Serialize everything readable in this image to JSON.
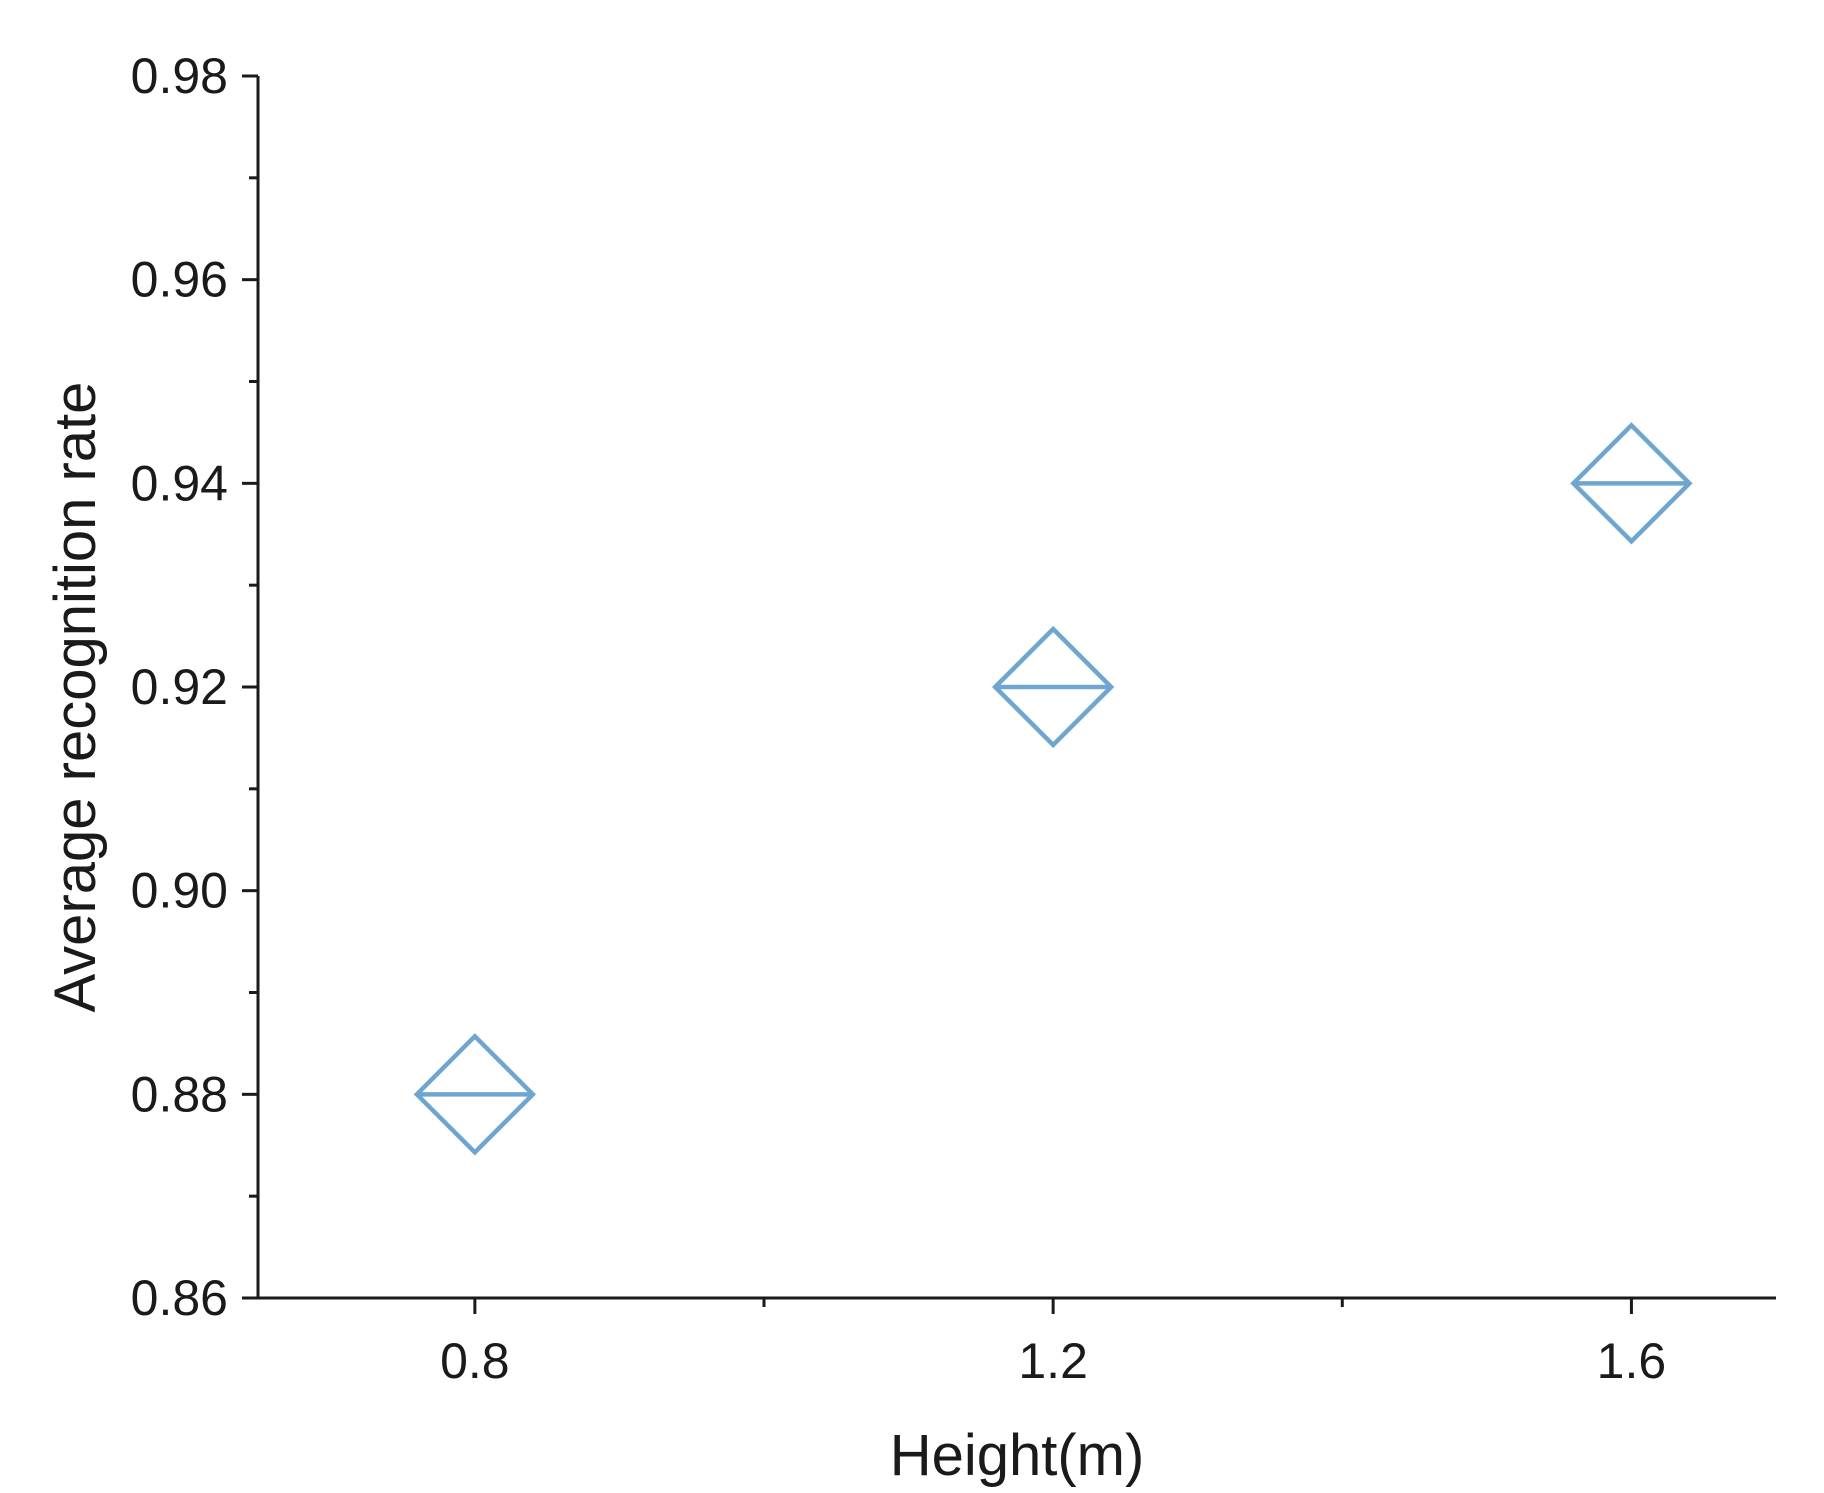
{
  "chart_data": {
    "type": "scatter",
    "xlabel": "Height(m)",
    "ylabel": "Average recognition rate",
    "xlim": [
      0.65,
      1.7
    ],
    "ylim": [
      0.86,
      0.98
    ],
    "x_ticks": [
      "0.8",
      "1.2",
      "1.6"
    ],
    "x_minor_ticks": [
      1.0,
      1.4
    ],
    "y_ticks": [
      "0.86",
      "0.88",
      "0.90",
      "0.92",
      "0.94",
      "0.96",
      "0.98"
    ],
    "y_minor_ticks": [
      0.87,
      0.89,
      0.91,
      0.93,
      0.95,
      0.97
    ],
    "marker": "diamond-with-horizontal-line",
    "marker_color": "#6fa6cf",
    "axis_color": "#1a1a1a",
    "grid": false,
    "series": [
      {
        "points": [
          {
            "x": 0.8,
            "y": 0.88
          },
          {
            "x": 1.2,
            "y": 0.92
          },
          {
            "x": 1.6,
            "y": 0.94
          }
        ]
      }
    ]
  }
}
